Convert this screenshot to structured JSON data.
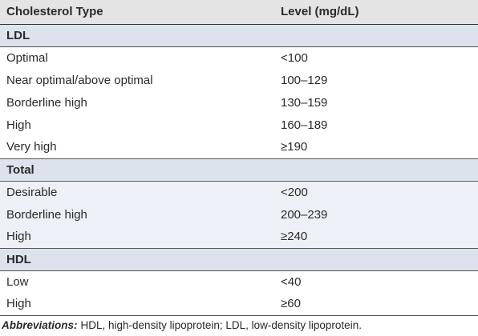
{
  "table": {
    "header": [
      "Cholesterol Type",
      "Level (mg/dL)"
    ],
    "sections": [
      {
        "title": "LDL",
        "rows": [
          [
            "Optimal",
            "<100"
          ],
          [
            "Near optimal/above optimal",
            "100–129"
          ],
          [
            "Borderline high",
            "130–159"
          ],
          [
            "High",
            "160–189"
          ],
          [
            "Very high",
            "≥190"
          ]
        ]
      },
      {
        "title": "Total",
        "rows": [
          [
            "Desirable",
            "<200"
          ],
          [
            "Borderline high",
            "200–239"
          ],
          [
            "High",
            "≥240"
          ]
        ]
      },
      {
        "title": "HDL",
        "rows": [
          [
            "Low",
            "<40"
          ],
          [
            "High",
            "≥60"
          ]
        ]
      }
    ]
  },
  "footnote": {
    "label": "Abbreviations:",
    "text": "HDL, high-density lipoprotein; LDL, low-density lipoprotein."
  }
}
